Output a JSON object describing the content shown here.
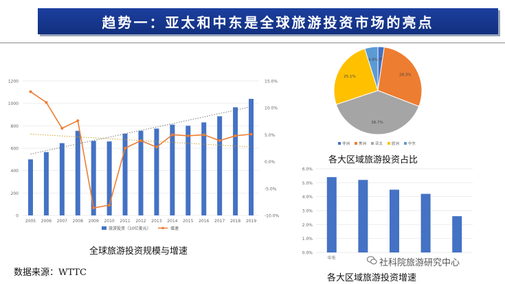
{
  "title": "趋势一：亚太和中东是全球旅游投资市场的亮点",
  "source": "数据来源：WTTC",
  "watermark": "社科院旅游研究中心",
  "chart_data": [
    {
      "type": "bar",
      "caption": "全球旅游投资规模与增速",
      "categories": [
        "2005",
        "2006",
        "2007",
        "2008",
        "2009",
        "2010",
        "2011",
        "2012",
        "2013",
        "2014",
        "2015",
        "2016",
        "2017",
        "2018",
        "2019"
      ],
      "series": [
        {
          "name": "旅游投资（10亿美元）",
          "type": "bar",
          "axis": "left",
          "values": [
            500,
            565,
            645,
            755,
            665,
            660,
            730,
            755,
            775,
            810,
            800,
            830,
            885,
            965,
            1040
          ]
        },
        {
          "name": "增速",
          "type": "line",
          "axis": "right",
          "values": [
            13.0,
            11.0,
            6.2,
            7.6,
            -8.6,
            -8.1,
            2.5,
            3.9,
            2.7,
            5.0,
            4.8,
            5.0,
            3.9,
            4.8,
            5.1
          ]
        }
      ],
      "ylim_left": [
        0,
        1200
      ],
      "yticks_left": [
        "0",
        "200",
        "400",
        "600",
        "800",
        "1000",
        "1200"
      ],
      "ylim_right": [
        -10,
        15
      ],
      "yticks_right": [
        "-10.0%",
        "-5.0%",
        "0.0%",
        "5.0%",
        "10.0%",
        "15.0%"
      ],
      "trendlines": [
        "dotted"
      ],
      "legend_position": "bottom",
      "colors": {
        "bar": "#4472c4",
        "line": "#ed7d31"
      }
    },
    {
      "type": "pie",
      "caption": "各大区域旅游投资占比",
      "labels": [
        "非洲",
        "美洲",
        "亚太",
        "欧洲",
        "中东"
      ],
      "values": [
        2.3,
        28.3,
        38.7,
        25.1,
        4.8
      ],
      "value_labels": [
        "2.3%",
        "28.3%",
        "38.7%",
        "25.1%",
        "4.8%"
      ],
      "colors": [
        "#4472c4",
        "#ed7d31",
        "#a5a5a5",
        "#ffc000",
        "#5b9bd5"
      ],
      "legend_position": "bottom"
    },
    {
      "type": "bar",
      "caption": "各大区域旅游投资增速",
      "categories": [
        "中东",
        "",
        "",
        "",
        ""
      ],
      "values": [
        5.4,
        5.2,
        4.5,
        4.2,
        2.6
      ],
      "ylim": [
        0,
        6
      ],
      "yticks": [
        "0.0%",
        "1.0%",
        "2.0%",
        "3.0%",
        "4.0%",
        "5.0%",
        "6.0%"
      ],
      "colors": {
        "bar": "#4472c4"
      }
    }
  ]
}
